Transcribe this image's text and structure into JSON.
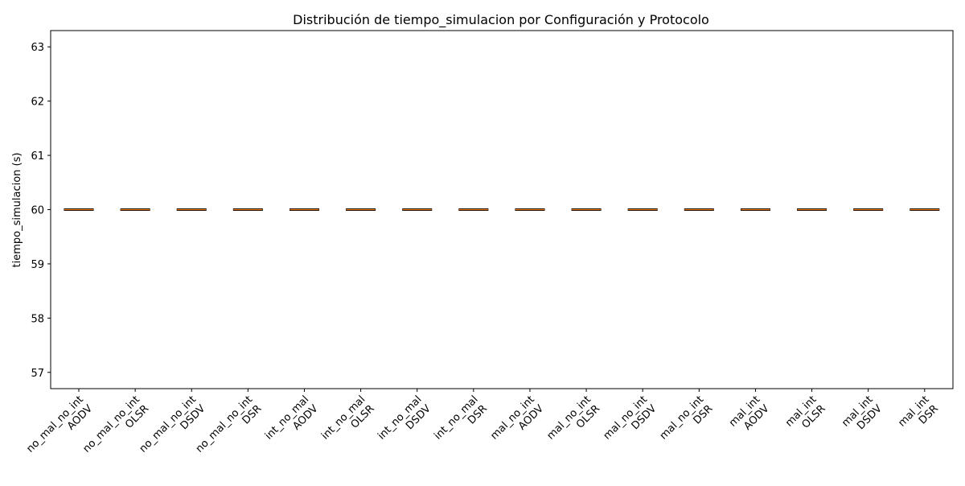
{
  "chart_data": {
    "type": "box",
    "title": "Distribución de tiempo_simulacion por Configuración y Protocolo",
    "xlabel": "",
    "ylabel": "tiempo_simulacion (s)",
    "ylim": [
      56.7,
      63.3
    ],
    "yticks": [
      57,
      58,
      59,
      60,
      61,
      62,
      63
    ],
    "grid": false,
    "categories": [
      {
        "config": "no_mal_no_int",
        "protocol": "AODV"
      },
      {
        "config": "no_mal_no_int",
        "protocol": "OLSR"
      },
      {
        "config": "no_mal_no_int",
        "protocol": "DSDV"
      },
      {
        "config": "no_mal_no_int",
        "protocol": "DSR"
      },
      {
        "config": "int_no_mal",
        "protocol": "AODV"
      },
      {
        "config": "int_no_mal",
        "protocol": "OLSR"
      },
      {
        "config": "int_no_mal",
        "protocol": "DSDV"
      },
      {
        "config": "int_no_mal",
        "protocol": "DSR"
      },
      {
        "config": "mal_no_int",
        "protocol": "AODV"
      },
      {
        "config": "mal_no_int",
        "protocol": "OLSR"
      },
      {
        "config": "mal_no_int",
        "protocol": "DSDV"
      },
      {
        "config": "mal_no_int",
        "protocol": "DSR"
      },
      {
        "config": "mal_int",
        "protocol": "AODV"
      },
      {
        "config": "mal_int",
        "protocol": "OLSR"
      },
      {
        "config": "mal_int",
        "protocol": "DSDV"
      },
      {
        "config": "mal_int",
        "protocol": "DSR"
      }
    ],
    "values": [
      60,
      60,
      60,
      60,
      60,
      60,
      60,
      60,
      60,
      60,
      60,
      60,
      60,
      60,
      60,
      60
    ],
    "box_color": "#000000",
    "median_color": "#ff7f0e"
  }
}
